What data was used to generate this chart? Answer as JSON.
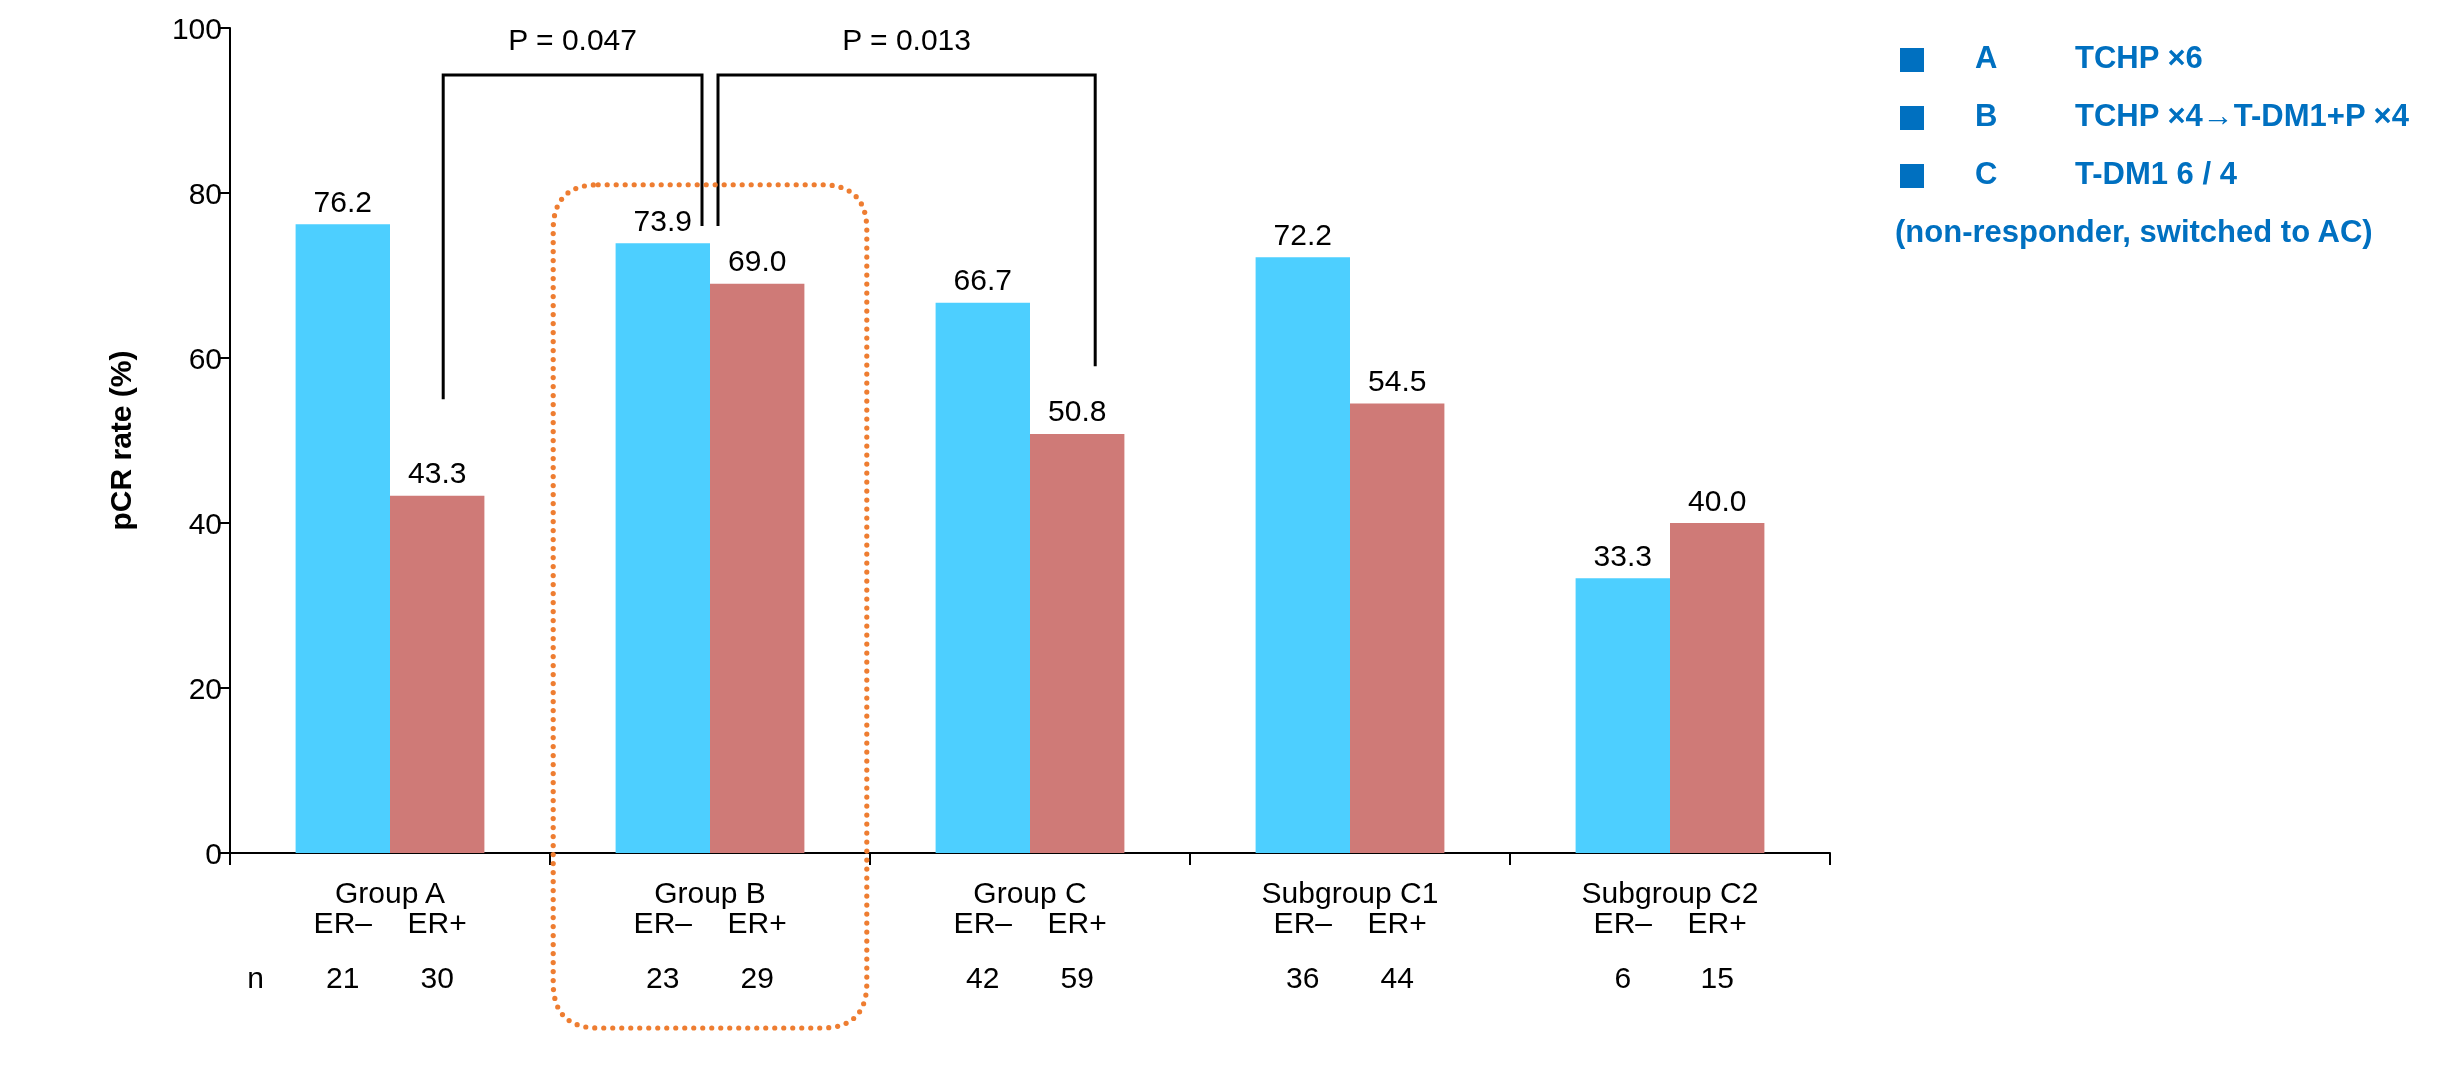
{
  "chart_data": {
    "type": "bar",
    "ylabel": "pCR rate (%)",
    "categories": [
      "Group A",
      "Group B",
      "Group C",
      "Subgroup C1",
      "Subgroup C2"
    ],
    "series": [
      {
        "name": "ER–",
        "color": "#4dcfff",
        "values": [
          76.2,
          73.9,
          66.7,
          72.2,
          33.3
        ],
        "value_labels": [
          "76.2",
          "73.9",
          "66.7",
          "72.2",
          "33.3"
        ]
      },
      {
        "name": "ER+",
        "color": "#cf7a77",
        "values": [
          43.3,
          69.0,
          50.8,
          54.5,
          40.0
        ],
        "value_labels": [
          "43.3",
          "69.0",
          "50.8",
          "54.5",
          "40.0"
        ]
      }
    ],
    "ylim": [
      0,
      100
    ],
    "yticks": [
      0,
      20,
      40,
      60,
      80,
      100
    ],
    "grid": false,
    "legend": false,
    "annotations": [
      "P = 0.047",
      "P = 0.013",
      "A",
      "TCHP ×6",
      "B",
      "TCHP ×4→T-DM1+P ×4",
      "C",
      "T-DM1 6 / 4",
      "(non-responder, switched to AC)",
      "n",
      "21",
      "30",
      "23",
      "29",
      "42",
      "59",
      "36",
      "44",
      "6",
      "15"
    ]
  }
}
